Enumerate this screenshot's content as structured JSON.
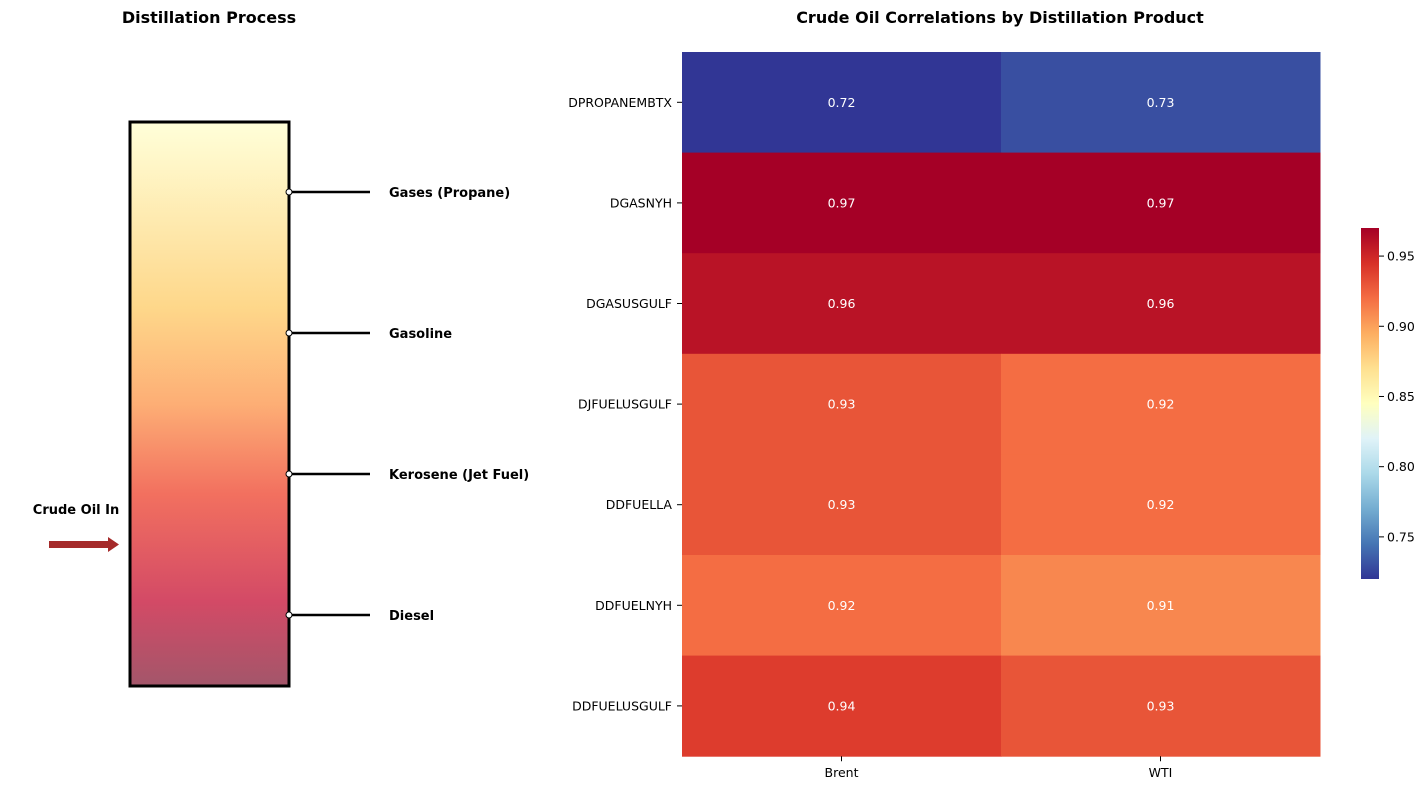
{
  "distillation": {
    "title": "Distillation Process",
    "feed_label": "Crude Oil In",
    "products": [
      "Gases (Propane)",
      "Gasoline",
      "Kerosene (Jet Fuel)",
      "Diesel"
    ],
    "colors": {
      "column_top": "#ffffd9",
      "column_mid1": "#fed78a",
      "column_mid2": "#fdae75",
      "column_mid3": "#f2705f",
      "column_mid4": "#d34a66",
      "column_bottom": "#a3566a",
      "arrow": "#a52a2a",
      "outline": "#000000"
    }
  },
  "chart_data": {
    "type": "heatmap",
    "title": "Crude Oil Correlations by Distillation Product",
    "xlabel": "",
    "ylabel": "",
    "columns": [
      "Brent",
      "WTI"
    ],
    "rows": [
      "DPROPANEMBTX",
      "DGASNYH",
      "DGASUSGULF",
      "DJFUELUSGULF",
      "DDFUELLA",
      "DDFUELNYH",
      "DDFUELUSGULF"
    ],
    "values": [
      [
        0.72,
        0.73
      ],
      [
        0.97,
        0.97
      ],
      [
        0.96,
        0.96
      ],
      [
        0.93,
        0.92
      ],
      [
        0.93,
        0.92
      ],
      [
        0.92,
        0.91
      ],
      [
        0.94,
        0.93
      ]
    ],
    "colormap": "RdYlBu_r",
    "vmin": 0.72,
    "vmax": 0.97,
    "colorbar_ticks": [
      "0.75",
      "0.80",
      "0.85",
      "0.90",
      "0.95"
    ],
    "colorbar_tick_values": [
      0.75,
      0.8,
      0.85,
      0.9,
      0.95
    ],
    "colorbar_position": "right"
  }
}
